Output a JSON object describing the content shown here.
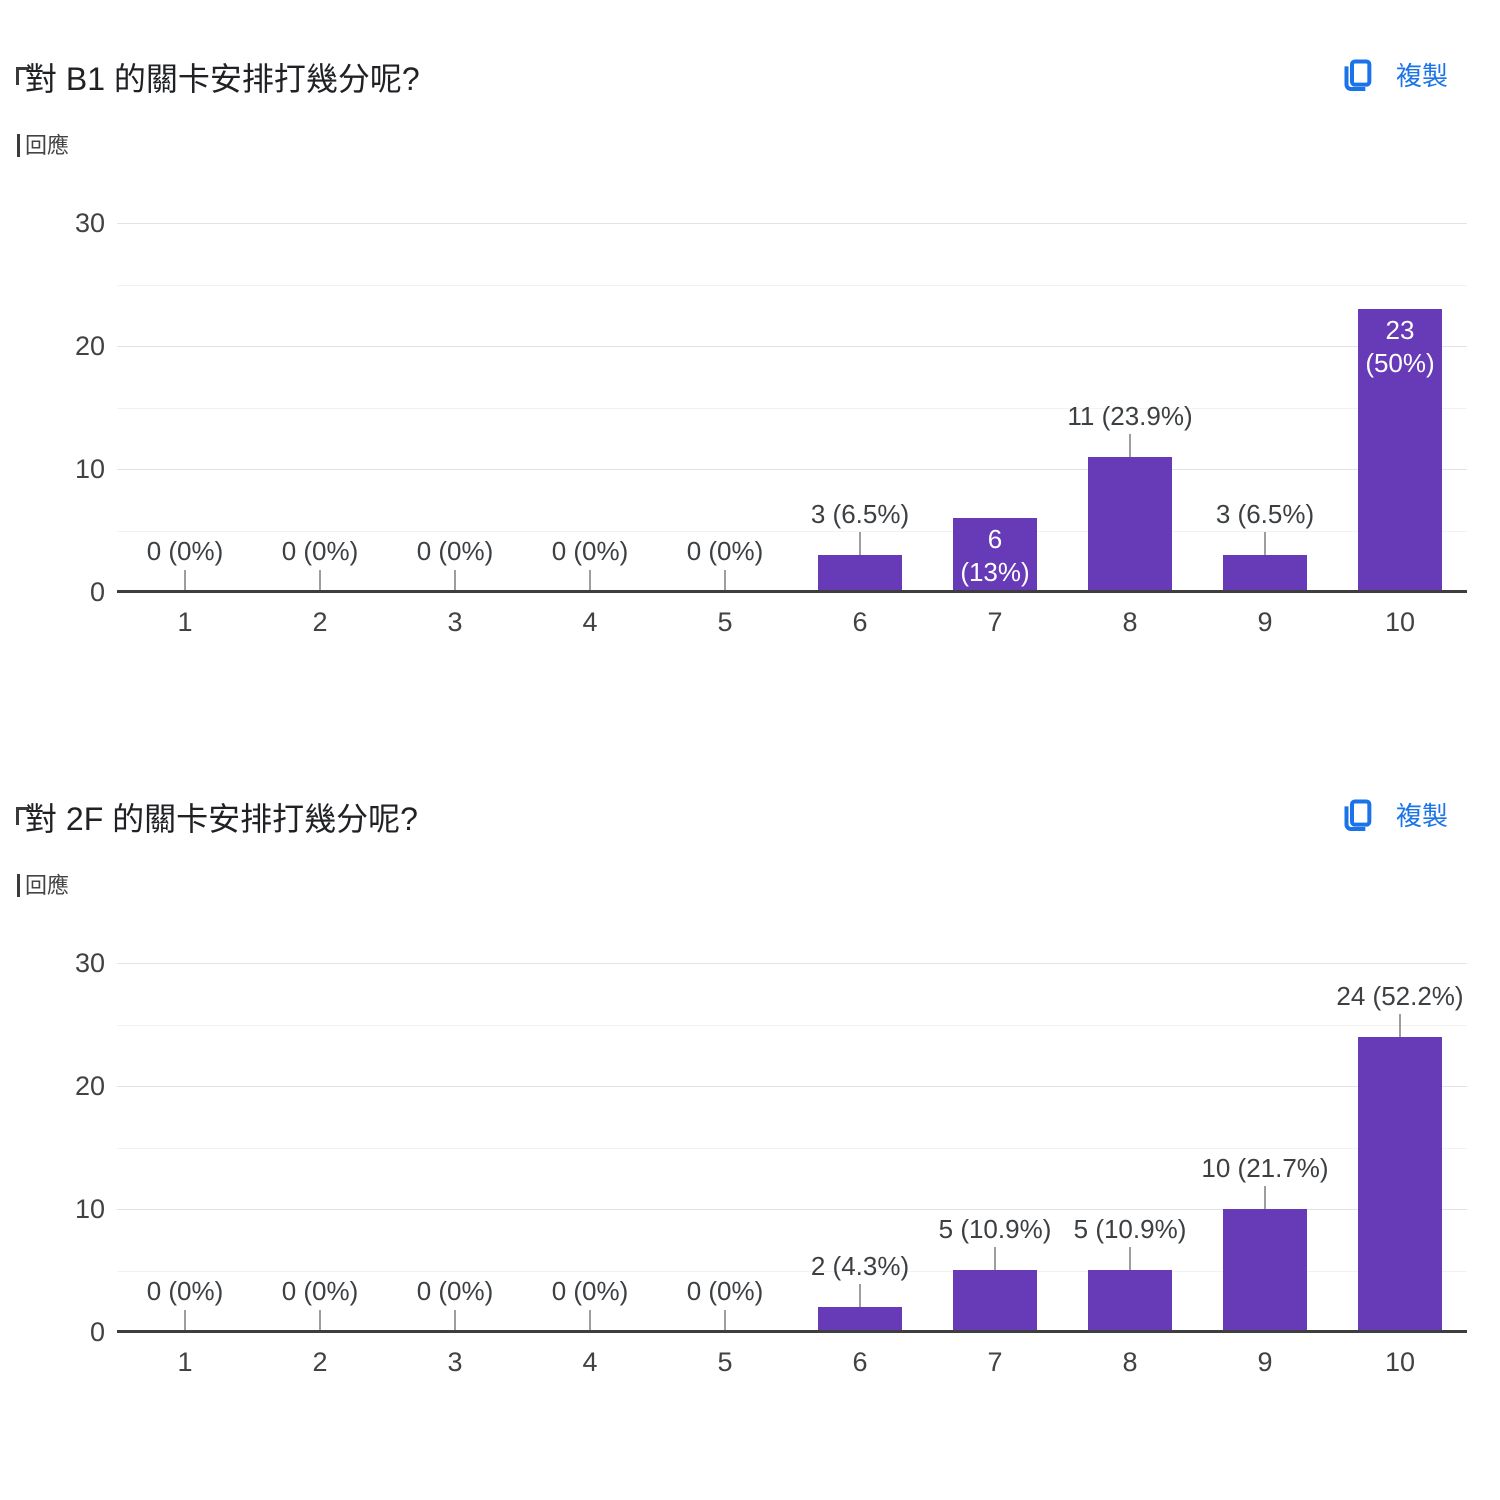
{
  "colors": {
    "bar": "#673ab7",
    "link": "#1a73e8",
    "axis_line": "#3e3e3e",
    "grid_major": "#e2e2e2",
    "grid_minor": "#f2f2f2",
    "callout_line": "#9e9e9e",
    "title_text": "#202124",
    "label_text": "#3c4043"
  },
  "charts": [
    {
      "title": "對 B1 的關卡安排打幾分呢?",
      "responses_label": "回應",
      "copy_label": "複製"
    },
    {
      "title": "對 2F 的關卡安排打幾分呢?",
      "responses_label": "回應",
      "copy_label": "複製"
    }
  ],
  "chart_data": [
    {
      "type": "bar",
      "title": "對 B1 的關卡安排打幾分呢?",
      "categories": [
        "1",
        "2",
        "3",
        "4",
        "5",
        "6",
        "7",
        "8",
        "9",
        "10"
      ],
      "values": [
        0,
        0,
        0,
        0,
        0,
        3,
        6,
        11,
        3,
        23
      ],
      "labels": [
        "0 (0%)",
        "0 (0%)",
        "0 (0%)",
        "0 (0%)",
        "0 (0%)",
        "3 (6.5%)",
        "6 (13%)",
        "11 (23.9%)",
        "3 (6.5%)",
        "23 (50%)"
      ],
      "label_inside": [
        false,
        false,
        false,
        false,
        false,
        false,
        true,
        false,
        false,
        true
      ],
      "xlabel": "",
      "ylabel": "",
      "ylim": [
        0,
        30
      ],
      "yticks": [
        0,
        10,
        20,
        30
      ],
      "grid": true,
      "legend": "none",
      "bar_color": "#673ab7"
    },
    {
      "type": "bar",
      "title": "對 2F 的關卡安排打幾分呢?",
      "categories": [
        "1",
        "2",
        "3",
        "4",
        "5",
        "6",
        "7",
        "8",
        "9",
        "10"
      ],
      "values": [
        0,
        0,
        0,
        0,
        0,
        2,
        5,
        5,
        10,
        24
      ],
      "labels": [
        "0 (0%)",
        "0 (0%)",
        "0 (0%)",
        "0 (0%)",
        "0 (0%)",
        "2 (4.3%)",
        "5 (10.9%)",
        "5 (10.9%)",
        "10 (21.7%)",
        "24 (52.2%)"
      ],
      "label_inside": [
        false,
        false,
        false,
        false,
        false,
        false,
        false,
        false,
        false,
        false
      ],
      "xlabel": "",
      "ylabel": "",
      "ylim": [
        0,
        30
      ],
      "yticks": [
        0,
        10,
        20,
        30
      ],
      "grid": true,
      "legend": "none",
      "bar_color": "#673ab7"
    }
  ]
}
